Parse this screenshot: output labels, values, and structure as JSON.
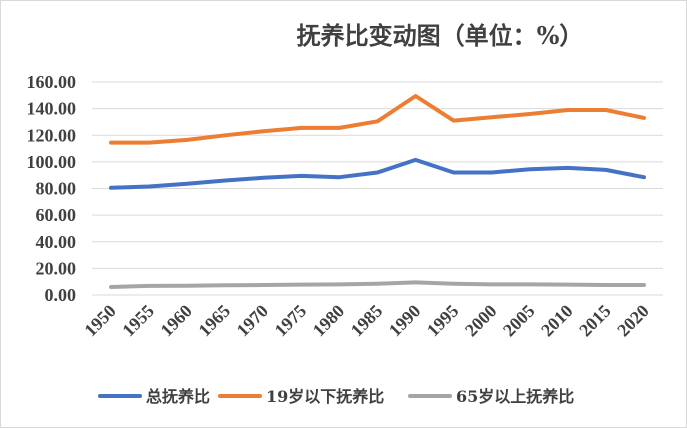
{
  "chart_data": {
    "type": "line",
    "title": "抚养比变动图（单位：%）",
    "xlabel": "",
    "ylabel": "",
    "x": [
      "1950",
      "1955",
      "1960",
      "1965",
      "1970",
      "1975",
      "1980",
      "1985",
      "1990",
      "1995",
      "2000",
      "2005",
      "2010",
      "2015",
      "2020"
    ],
    "ylim": [
      0,
      160
    ],
    "yticks": [
      "0.00",
      "20.00",
      "40.00",
      "60.00",
      "80.00",
      "100.00",
      "120.00",
      "140.00",
      "160.00"
    ],
    "grid": true,
    "legend_position": "bottom",
    "series": [
      {
        "name": "总抚养比",
        "color": "#4472c4",
        "values": [
          80.5,
          81.5,
          83.5,
          86.0,
          88.0,
          89.5,
          88.5,
          92.0,
          101.5,
          92.0,
          92.0,
          94.5,
          95.5,
          94.0,
          88.5
        ]
      },
      {
        "name": "19岁以下抚养比",
        "color": "#ed7d31",
        "values": [
          114.5,
          114.5,
          116.5,
          120.0,
          123.0,
          125.5,
          125.5,
          130.5,
          149.5,
          131.0,
          133.5,
          136.0,
          139.0,
          139.0,
          133.0
        ]
      },
      {
        "name": "65岁以上抚养比",
        "color": "#a5a5a5",
        "values": [
          6.0,
          6.8,
          7.0,
          7.3,
          7.5,
          7.8,
          8.0,
          8.5,
          9.5,
          8.5,
          8.0,
          8.0,
          7.8,
          7.5,
          7.5
        ]
      }
    ]
  }
}
